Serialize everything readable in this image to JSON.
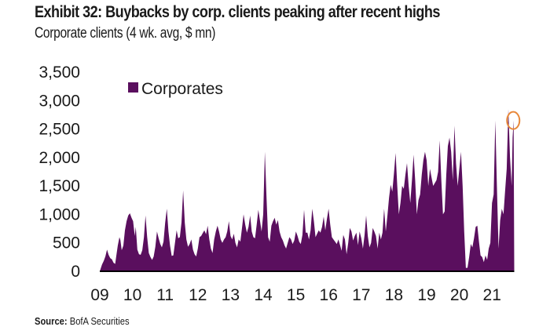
{
  "header": {
    "title": "Exhibit 32: Buybacks by corp. clients peaking after recent highs",
    "subtitle": "Corporate clients (4 wk. avg, $ mn)"
  },
  "footer": {
    "source_label": "Source:",
    "source_text": "BofA Securities"
  },
  "colors": {
    "series": "#5a0f5e",
    "highlight_circle": "#e8883a",
    "axis": "#000000"
  },
  "chart_data": {
    "type": "area",
    "title": "Exhibit 32: Buybacks by corp. clients peaking after recent highs",
    "subtitle": "Corporate clients (4 wk. avg, $ mn)",
    "xlabel": "",
    "ylabel": "",
    "ylim": [
      0,
      3500
    ],
    "xlim": [
      2009.0,
      2021.7
    ],
    "grid": false,
    "yticks": [
      0,
      500,
      1000,
      1500,
      2000,
      2500,
      3000,
      3500
    ],
    "ytick_labels": [
      "0",
      "500",
      "1,000",
      "1,500",
      "2,000",
      "2,500",
      "3,000",
      "3,500"
    ],
    "xticks": [
      2009,
      2010,
      2011,
      2012,
      2013,
      2014,
      2015,
      2016,
      2017,
      2018,
      2019,
      2020,
      2021
    ],
    "xtick_labels": [
      "09",
      "10",
      "11",
      "12",
      "13",
      "14",
      "15",
      "16",
      "17",
      "18",
      "19",
      "20",
      "21"
    ],
    "legend": {
      "entries": [
        "Corporates"
      ],
      "position": "top-left"
    },
    "annotation": {
      "type": "circle",
      "note": "latest peak highlighted",
      "x": 2021.65,
      "y": 2650
    },
    "series": [
      {
        "name": "Corporates",
        "points": [
          [
            2009.0,
            0
          ],
          [
            2009.03,
            50
          ],
          [
            2009.07,
            120
          ],
          [
            2009.12,
            180
          ],
          [
            2009.17,
            260
          ],
          [
            2009.22,
            380
          ],
          [
            2009.27,
            290
          ],
          [
            2009.32,
            230
          ],
          [
            2009.37,
            210
          ],
          [
            2009.42,
            150
          ],
          [
            2009.47,
            130
          ],
          [
            2009.5,
            250
          ],
          [
            2009.55,
            450
          ],
          [
            2009.6,
            600
          ],
          [
            2009.63,
            550
          ],
          [
            2009.67,
            370
          ],
          [
            2009.72,
            450
          ],
          [
            2009.77,
            720
          ],
          [
            2009.82,
            880
          ],
          [
            2009.87,
            980
          ],
          [
            2009.92,
            1020
          ],
          [
            2009.97,
            940
          ],
          [
            2010.02,
            880
          ],
          [
            2010.07,
            620
          ],
          [
            2010.1,
            780
          ],
          [
            2010.15,
            380
          ],
          [
            2010.2,
            300
          ],
          [
            2010.25,
            290
          ],
          [
            2010.3,
            370
          ],
          [
            2010.35,
            600
          ],
          [
            2010.4,
            980
          ],
          [
            2010.45,
            600
          ],
          [
            2010.5,
            320
          ],
          [
            2010.55,
            250
          ],
          [
            2010.6,
            200
          ],
          [
            2010.65,
            260
          ],
          [
            2010.7,
            430
          ],
          [
            2010.75,
            700
          ],
          [
            2010.8,
            580
          ],
          [
            2010.85,
            480
          ],
          [
            2010.9,
            420
          ],
          [
            2010.95,
            520
          ],
          [
            2011.0,
            850
          ],
          [
            2011.05,
            1100
          ],
          [
            2011.1,
            700
          ],
          [
            2011.15,
            450
          ],
          [
            2011.2,
            270
          ],
          [
            2011.25,
            280
          ],
          [
            2011.3,
            500
          ],
          [
            2011.35,
            720
          ],
          [
            2011.4,
            580
          ],
          [
            2011.45,
            600
          ],
          [
            2011.5,
            860
          ],
          [
            2011.55,
            1420
          ],
          [
            2011.6,
            850
          ],
          [
            2011.65,
            560
          ],
          [
            2011.7,
            430
          ],
          [
            2011.75,
            480
          ],
          [
            2011.8,
            560
          ],
          [
            2011.85,
            380
          ],
          [
            2011.9,
            300
          ],
          [
            2011.95,
            260
          ],
          [
            2012.0,
            400
          ],
          [
            2012.05,
            600
          ],
          [
            2012.1,
            620
          ],
          [
            2012.15,
            670
          ],
          [
            2012.2,
            720
          ],
          [
            2012.25,
            650
          ],
          [
            2012.3,
            800
          ],
          [
            2012.35,
            560
          ],
          [
            2012.4,
            400
          ],
          [
            2012.45,
            320
          ],
          [
            2012.5,
            560
          ],
          [
            2012.55,
            700
          ],
          [
            2012.6,
            800
          ],
          [
            2012.65,
            700
          ],
          [
            2012.7,
            560
          ],
          [
            2012.75,
            500
          ],
          [
            2012.8,
            560
          ],
          [
            2012.85,
            600
          ],
          [
            2012.9,
            700
          ],
          [
            2012.95,
            880
          ],
          [
            2013.0,
            620
          ],
          [
            2013.05,
            560
          ],
          [
            2013.1,
            660
          ],
          [
            2013.15,
            500
          ],
          [
            2013.2,
            420
          ],
          [
            2013.25,
            560
          ],
          [
            2013.3,
            520
          ],
          [
            2013.35,
            760
          ],
          [
            2013.4,
            1000
          ],
          [
            2013.45,
            820
          ],
          [
            2013.5,
            680
          ],
          [
            2013.55,
            780
          ],
          [
            2013.6,
            980
          ],
          [
            2013.65,
            700
          ],
          [
            2013.7,
            600
          ],
          [
            2013.75,
            580
          ],
          [
            2013.8,
            820
          ],
          [
            2013.85,
            1080
          ],
          [
            2013.9,
            900
          ],
          [
            2013.95,
            700
          ],
          [
            2014.0,
            1000
          ],
          [
            2014.05,
            2100
          ],
          [
            2014.1,
            1300
          ],
          [
            2014.15,
            600
          ],
          [
            2014.2,
            520
          ],
          [
            2014.25,
            800
          ],
          [
            2014.3,
            880
          ],
          [
            2014.35,
            940
          ],
          [
            2014.4,
            820
          ],
          [
            2014.45,
            900
          ],
          [
            2014.5,
            700
          ],
          [
            2014.55,
            600
          ],
          [
            2014.6,
            540
          ],
          [
            2014.65,
            460
          ],
          [
            2014.7,
            400
          ],
          [
            2014.75,
            500
          ],
          [
            2014.8,
            600
          ],
          [
            2014.85,
            560
          ],
          [
            2014.9,
            480
          ],
          [
            2014.95,
            540
          ],
          [
            2015.0,
            700
          ],
          [
            2015.05,
            620
          ],
          [
            2015.1,
            520
          ],
          [
            2015.15,
            480
          ],
          [
            2015.2,
            640
          ],
          [
            2015.25,
            1080
          ],
          [
            2015.3,
            680
          ],
          [
            2015.35,
            680
          ],
          [
            2015.4,
            560
          ],
          [
            2015.45,
            720
          ],
          [
            2015.5,
            1100
          ],
          [
            2015.55,
            880
          ],
          [
            2015.6,
            600
          ],
          [
            2015.65,
            660
          ],
          [
            2015.7,
            720
          ],
          [
            2015.75,
            680
          ],
          [
            2015.8,
            780
          ],
          [
            2015.85,
            960
          ],
          [
            2015.9,
            720
          ],
          [
            2015.95,
            920
          ],
          [
            2016.0,
            1100
          ],
          [
            2016.05,
            820
          ],
          [
            2016.1,
            600
          ],
          [
            2016.15,
            560
          ],
          [
            2016.2,
            520
          ],
          [
            2016.25,
            480
          ],
          [
            2016.3,
            560
          ],
          [
            2016.35,
            460
          ],
          [
            2016.4,
            360
          ],
          [
            2016.45,
            640
          ],
          [
            2016.5,
            560
          ],
          [
            2016.55,
            300
          ],
          [
            2016.6,
            500
          ],
          [
            2016.65,
            760
          ],
          [
            2016.7,
            700
          ],
          [
            2016.75,
            540
          ],
          [
            2016.8,
            620
          ],
          [
            2016.85,
            680
          ],
          [
            2016.9,
            460
          ],
          [
            2016.95,
            700
          ],
          [
            2017.0,
            580
          ],
          [
            2017.05,
            400
          ],
          [
            2017.1,
            640
          ],
          [
            2017.15,
            980
          ],
          [
            2017.2,
            620
          ],
          [
            2017.25,
            420
          ],
          [
            2017.3,
            500
          ],
          [
            2017.35,
            760
          ],
          [
            2017.4,
            700
          ],
          [
            2017.45,
            620
          ],
          [
            2017.5,
            400
          ],
          [
            2017.55,
            680
          ],
          [
            2017.6,
            560
          ],
          [
            2017.65,
            680
          ],
          [
            2017.7,
            1100
          ],
          [
            2017.75,
            700
          ],
          [
            2017.8,
            980
          ],
          [
            2017.85,
            1300
          ],
          [
            2017.9,
            1520
          ],
          [
            2017.95,
            1400
          ],
          [
            2018.0,
            1720
          ],
          [
            2018.05,
            2080
          ],
          [
            2018.1,
            1500
          ],
          [
            2018.15,
            1000
          ],
          [
            2018.2,
            1200
          ],
          [
            2018.25,
            1500
          ],
          [
            2018.3,
            1450
          ],
          [
            2018.35,
            1700
          ],
          [
            2018.4,
            1900
          ],
          [
            2018.45,
            1500
          ],
          [
            2018.5,
            1200
          ],
          [
            2018.55,
            1600
          ],
          [
            2018.6,
            2050
          ],
          [
            2018.65,
            1600
          ],
          [
            2018.7,
            1000
          ],
          [
            2018.75,
            1250
          ],
          [
            2018.8,
            1350
          ],
          [
            2018.85,
            1700
          ],
          [
            2018.9,
            1950
          ],
          [
            2018.95,
            2100
          ],
          [
            2019.0,
            1950
          ],
          [
            2019.05,
            1500
          ],
          [
            2019.1,
            1800
          ],
          [
            2019.15,
            1650
          ],
          [
            2019.2,
            1500
          ],
          [
            2019.25,
            1550
          ],
          [
            2019.3,
            1600
          ],
          [
            2019.35,
            1750
          ],
          [
            2019.4,
            2300
          ],
          [
            2019.45,
            1600
          ],
          [
            2019.5,
            1000
          ],
          [
            2019.55,
            1050
          ],
          [
            2019.6,
            1700
          ],
          [
            2019.65,
            2200
          ],
          [
            2019.7,
            2350
          ],
          [
            2019.75,
            2100
          ],
          [
            2019.8,
            1600
          ],
          [
            2019.85,
            2560
          ],
          [
            2019.9,
            1900
          ],
          [
            2019.95,
            1500
          ],
          [
            2020.0,
            1800
          ],
          [
            2020.05,
            2100
          ],
          [
            2020.1,
            1500
          ],
          [
            2020.15,
            700
          ],
          [
            2020.2,
            60
          ],
          [
            2020.25,
            60
          ],
          [
            2020.3,
            250
          ],
          [
            2020.35,
            480
          ],
          [
            2020.4,
            420
          ],
          [
            2020.45,
            580
          ],
          [
            2020.5,
            780
          ],
          [
            2020.55,
            800
          ],
          [
            2020.6,
            520
          ],
          [
            2020.65,
            280
          ],
          [
            2020.7,
            250
          ],
          [
            2020.75,
            160
          ],
          [
            2020.8,
            280
          ],
          [
            2020.85,
            200
          ],
          [
            2020.9,
            400
          ],
          [
            2020.95,
            500
          ],
          [
            2021.0,
            1200
          ],
          [
            2021.05,
            1350
          ],
          [
            2021.1,
            2650
          ],
          [
            2021.15,
            1500
          ],
          [
            2021.2,
            400
          ],
          [
            2021.25,
            900
          ],
          [
            2021.3,
            1100
          ],
          [
            2021.35,
            1000
          ],
          [
            2021.4,
            1400
          ],
          [
            2021.45,
            1800
          ],
          [
            2021.5,
            2850
          ],
          [
            2021.55,
            2000
          ],
          [
            2021.6,
            1500
          ],
          [
            2021.63,
            2350
          ],
          [
            2021.66,
            2650
          ],
          [
            2021.68,
            0
          ]
        ]
      }
    ]
  }
}
